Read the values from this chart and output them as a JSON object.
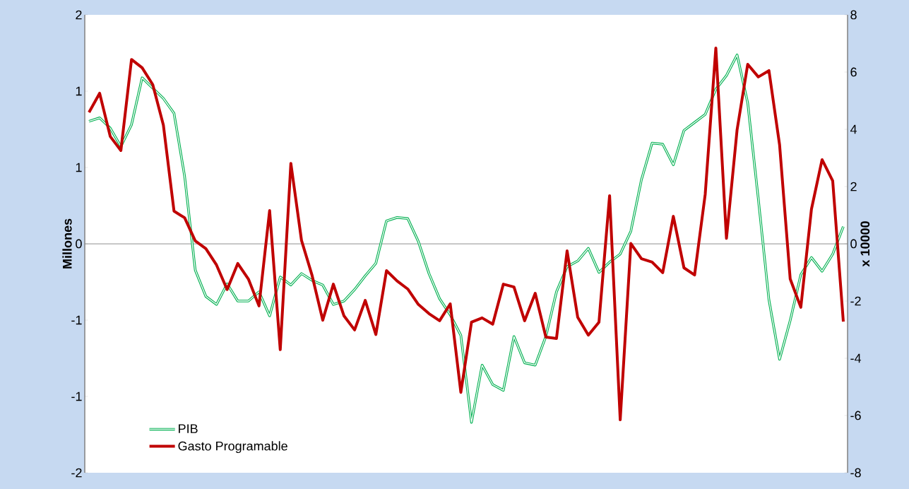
{
  "chart_data": {
    "type": "line",
    "ylabel": "Millones",
    "y2label": "x 10000",
    "categories": [
      null,
      null,
      null,
      null,
      null,
      null,
      null,
      null,
      null,
      null,
      null,
      null,
      null,
      null,
      null,
      null,
      null,
      null,
      null,
      null,
      null,
      null,
      null,
      null,
      null,
      null,
      null,
      null,
      null,
      null,
      null,
      null,
      null,
      null,
      null,
      null,
      null,
      null,
      null,
      null,
      null,
      null,
      null,
      null,
      null,
      null,
      null,
      null,
      null,
      null,
      null,
      null,
      null,
      null,
      null,
      null,
      null,
      null,
      null,
      null,
      null,
      null,
      null,
      null,
      null,
      null,
      null,
      null,
      null,
      null,
      null,
      null
    ],
    "series": [
      {
        "name": "PIB",
        "color": "#00b050",
        "values": [
          1.07,
          1.1,
          1.01,
          0.85,
          1.04,
          1.45,
          1.36,
          1.27,
          1.14,
          0.59,
          -0.23,
          -0.46,
          -0.53,
          -0.35,
          -0.5,
          -0.5,
          -0.42,
          -0.63,
          -0.29,
          -0.36,
          -0.26,
          -0.32,
          -0.36,
          -0.53,
          -0.5,
          -0.4,
          -0.28,
          -0.17,
          0.2,
          0.23,
          0.22,
          0.02,
          -0.26,
          -0.48,
          -0.62,
          -0.8,
          -1.56,
          -1.06,
          -1.23,
          -1.28,
          -0.81,
          -1.04,
          -1.06,
          -0.81,
          -0.42,
          -0.2,
          -0.15,
          -0.04,
          -0.25,
          -0.16,
          -0.09,
          0.11,
          0.56,
          0.88,
          0.87,
          0.69,
          0.99,
          1.06,
          1.13,
          1.35,
          1.47,
          1.65,
          1.23,
          0.39,
          -0.49,
          -1.01,
          -0.67,
          -0.27,
          -0.12,
          -0.24,
          -0.09,
          0.15
        ]
      },
      {
        "name": "Gasto Programable",
        "color": "#c00000",
        "axis": "y2",
        "values": [
          4.59,
          5.26,
          3.75,
          3.26,
          6.44,
          6.15,
          5.56,
          4.15,
          1.14,
          0.91,
          0.1,
          -0.17,
          -0.74,
          -1.6,
          -0.69,
          -1.23,
          -2.17,
          1.16,
          -3.7,
          2.81,
          0.12,
          -1.11,
          -2.67,
          -1.41,
          -2.52,
          -3.01,
          -1.98,
          -3.17,
          -0.94,
          -1.3,
          -1.58,
          -2.12,
          -2.44,
          -2.69,
          -2.1,
          -5.19,
          -2.74,
          -2.59,
          -2.81,
          -1.41,
          -1.51,
          -2.69,
          -1.73,
          -3.26,
          -3.31,
          -0.25,
          -2.57,
          -3.19,
          -2.74,
          1.68,
          -6.15,
          0.01,
          -0.52,
          -0.64,
          -1.01,
          0.96,
          -0.84,
          -1.09,
          1.73,
          6.84,
          0.19,
          3.98,
          6.27,
          5.83,
          6.05,
          3.46,
          -1.23,
          -2.22,
          1.21,
          2.94,
          2.2,
          -2.72
        ]
      }
    ],
    "ylim": [
      -2,
      2
    ],
    "yticks": [
      {
        "value": -2,
        "label": "-2"
      },
      {
        "value": -1.3333,
        "label": "-1"
      },
      {
        "value": -0.6667,
        "label": "-1"
      },
      {
        "value": 0,
        "label": "0"
      },
      {
        "value": 0.6667,
        "label": "1"
      },
      {
        "value": 1.3333,
        "label": "1"
      },
      {
        "value": 2,
        "label": "2"
      }
    ],
    "y2lim": [
      -8,
      8
    ],
    "y2ticks": [
      -8,
      -6,
      -4,
      -2,
      0,
      2,
      4,
      6,
      8
    ],
    "ref_lines": [
      {
        "axis": "y",
        "value": 0,
        "color": "#808080"
      }
    ],
    "tick_labels": "y",
    "grid": false,
    "legend": "bottom left",
    "marker": "none",
    "line_style": "solid"
  }
}
